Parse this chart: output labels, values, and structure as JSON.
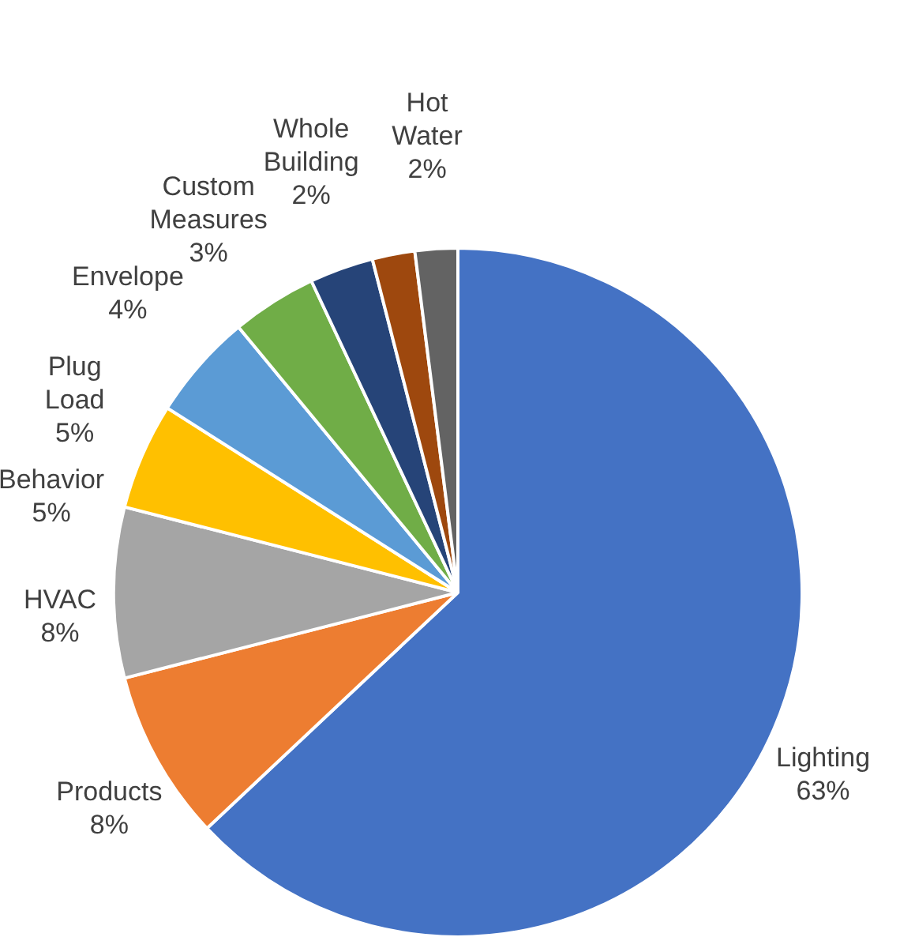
{
  "chart_data": {
    "type": "pie",
    "categories": [
      "Lighting",
      "Products",
      "HVAC",
      "Behavior",
      "Plug Load",
      "Envelope",
      "Custom Measures",
      "Whole Building",
      "Hot Water"
    ],
    "values": [
      63,
      8,
      8,
      5,
      5,
      4,
      3,
      2,
      2
    ],
    "value_labels": [
      "63%",
      "8%",
      "8%",
      "5%",
      "5%",
      "4%",
      "3%",
      "2%",
      "2%"
    ],
    "colors": [
      "#4472c4",
      "#ed7d31",
      "#a5a5a5",
      "#ffc000",
      "#5b9bd5",
      "#70ad47",
      "#264478",
      "#9e480e",
      "#636363"
    ]
  }
}
